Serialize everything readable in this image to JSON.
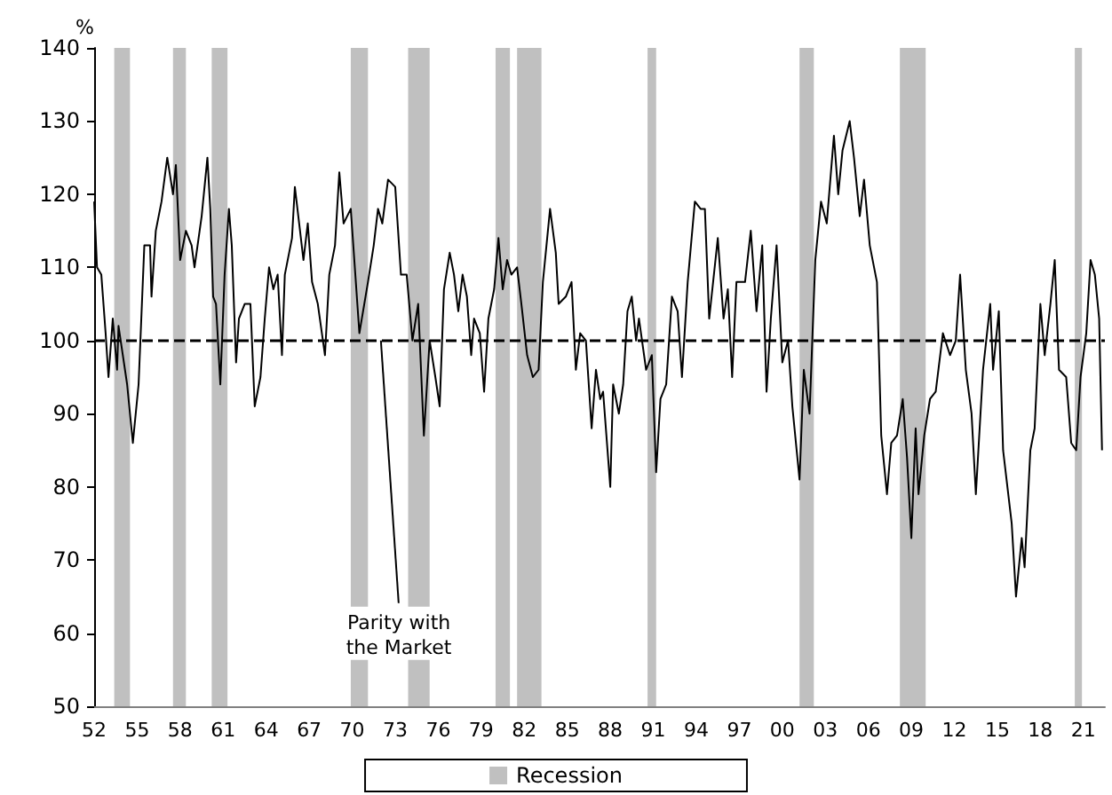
{
  "chart_data": {
    "type": "line",
    "ylabel": "%",
    "x": [
      1952.0,
      1952.2,
      1952.5,
      1952.8,
      1953.0,
      1953.3,
      1953.6,
      1953.7,
      1954.0,
      1954.3,
      1954.7,
      1955.1,
      1955.5,
      1955.9,
      1956.0,
      1956.3,
      1956.7,
      1957.1,
      1957.5,
      1957.7,
      1958.0,
      1958.4,
      1958.8,
      1959.0,
      1959.5,
      1959.9,
      1960.1,
      1960.3,
      1960.5,
      1960.8,
      1961.1,
      1961.4,
      1961.6,
      1961.9,
      1962.1,
      1962.5,
      1962.9,
      1963.2,
      1963.6,
      1963.9,
      1964.2,
      1964.5,
      1964.8,
      1965.1,
      1965.3,
      1965.8,
      1966.0,
      1966.3,
      1966.6,
      1966.9,
      1967.2,
      1967.6,
      1968.1,
      1968.4,
      1968.8,
      1969.1,
      1969.4,
      1969.9,
      1970.5,
      1971.1,
      1971.5,
      1971.8,
      1972.1,
      1972.5,
      1973.0,
      1973.4,
      1973.8,
      1974.2,
      1974.6,
      1975.0,
      1975.4,
      1975.8,
      1976.1,
      1976.4,
      1976.8,
      1977.1,
      1977.4,
      1977.7,
      1978.0,
      1978.3,
      1978.5,
      1978.9,
      1979.2,
      1979.5,
      1979.9,
      1980.2,
      1980.5,
      1980.8,
      1981.1,
      1981.5,
      1981.8,
      1982.2,
      1982.6,
      1983.0,
      1983.3,
      1983.8,
      1984.2,
      1984.4,
      1984.9,
      1985.3,
      1985.6,
      1985.9,
      1986.3,
      1986.7,
      1987.0,
      1987.3,
      1987.5,
      1988.0,
      1988.2,
      1988.6,
      1988.9,
      1989.2,
      1989.5,
      1989.8,
      1990.0,
      1990.5,
      1990.9,
      1991.2,
      1991.5,
      1991.9,
      1992.3,
      1992.7,
      1993.0,
      1993.4,
      1993.9,
      1994.3,
      1994.6,
      1994.9,
      1995.5,
      1995.9,
      1996.2,
      1996.5,
      1996.8,
      1997.4,
      1997.8,
      1998.2,
      1998.6,
      1998.9,
      1999.2,
      1999.6,
      2000.0,
      2000.4,
      2000.7,
      2001.2,
      2001.5,
      2001.9,
      2002.3,
      2002.7,
      2003.1,
      2003.6,
      2003.9,
      2004.2,
      2004.7,
      2005.0,
      2005.4,
      2005.7,
      2006.1,
      2006.6,
      2006.9,
      2007.3,
      2007.6,
      2008.0,
      2008.4,
      2008.7,
      2009.0,
      2009.3,
      2009.5,
      2009.9,
      2010.3,
      2010.7,
      2011.2,
      2011.7,
      2012.1,
      2012.4,
      2012.8,
      2013.2,
      2013.5,
      2014.0,
      2014.5,
      2014.7,
      2015.1,
      2015.4,
      2016.0,
      2016.3,
      2016.7,
      2016.9,
      2017.3,
      2017.6,
      2018.0,
      2018.3,
      2018.7,
      2019.0,
      2019.3,
      2019.8,
      2020.15,
      2020.5,
      2020.8,
      2021.2,
      2021.5,
      2021.8,
      2022.1,
      2022.3
    ],
    "series": [
      {
        "color": "#000000",
        "values": [
          119,
          110,
          109,
          101,
          95,
          103,
          96,
          102,
          98,
          94,
          86,
          94,
          113,
          113,
          106,
          115,
          119,
          125,
          120,
          124,
          111,
          115,
          113,
          110,
          117,
          125,
          118,
          106,
          105,
          94,
          109,
          118,
          113,
          97,
          103,
          105,
          105,
          91,
          95,
          103,
          110,
          107,
          109,
          98,
          109,
          114,
          121,
          116,
          111,
          116,
          108,
          105,
          98,
          109,
          113,
          123,
          116,
          118,
          101,
          108,
          113,
          118,
          116,
          122,
          121,
          109,
          109,
          100,
          105,
          87,
          100,
          95,
          91,
          107,
          112,
          109,
          104,
          109,
          106,
          98,
          103,
          101,
          93,
          103,
          107,
          114,
          107,
          111,
          109,
          110,
          105,
          98,
          95,
          96,
          108,
          118,
          112,
          105,
          106,
          108,
          96,
          101,
          100,
          88,
          96,
          92,
          93,
          80,
          94,
          90,
          94,
          104,
          106,
          100,
          103,
          96,
          98,
          82,
          92,
          94,
          106,
          104,
          95,
          108,
          119,
          118,
          118,
          103,
          114,
          103,
          107,
          95,
          108,
          108,
          115,
          104,
          113,
          93,
          103,
          113,
          97,
          100,
          91,
          81,
          96,
          90,
          111,
          119,
          116,
          128,
          120,
          126,
          130,
          125,
          117,
          122,
          113,
          108,
          87,
          79,
          86,
          87,
          92,
          84,
          73,
          88,
          79,
          87,
          92,
          93,
          101,
          98,
          100,
          109,
          96,
          90,
          79,
          96,
          105,
          96,
          104,
          85,
          75,
          65,
          73,
          69,
          85,
          88,
          105,
          98,
          105,
          111,
          96,
          95,
          86,
          85,
          95,
          101,
          111,
          109,
          103,
          85
        ]
      }
    ],
    "xlim": [
      1952,
      2022.5
    ],
    "xticks": [
      {
        "value": 1952,
        "label": "52"
      },
      {
        "value": 1955,
        "label": "55"
      },
      {
        "value": 1958,
        "label": "58"
      },
      {
        "value": 1961,
        "label": "61"
      },
      {
        "value": 1964,
        "label": "64"
      },
      {
        "value": 1967,
        "label": "67"
      },
      {
        "value": 1970,
        "label": "70"
      },
      {
        "value": 1973,
        "label": "73"
      },
      {
        "value": 1976,
        "label": "76"
      },
      {
        "value": 1979,
        "label": "79"
      },
      {
        "value": 1982,
        "label": "82"
      },
      {
        "value": 1985,
        "label": "85"
      },
      {
        "value": 1988,
        "label": "88"
      },
      {
        "value": 1991,
        "label": "91"
      },
      {
        "value": 1994,
        "label": "94"
      },
      {
        "value": 1997,
        "label": "97"
      },
      {
        "value": 2000,
        "label": "00"
      },
      {
        "value": 2003,
        "label": "03"
      },
      {
        "value": 2006,
        "label": "06"
      },
      {
        "value": 2009,
        "label": "09"
      },
      {
        "value": 2012,
        "label": "12"
      },
      {
        "value": 2015,
        "label": "15"
      },
      {
        "value": 2018,
        "label": "18"
      },
      {
        "value": 2021,
        "label": "21"
      }
    ],
    "ylim": [
      50,
      140
    ],
    "yticks": [
      50,
      60,
      70,
      80,
      90,
      100,
      110,
      120,
      130,
      140
    ],
    "ref_lines": [
      {
        "axis": "y",
        "value": 100,
        "color": "#000000",
        "line_style": "dashed"
      }
    ],
    "bands": [
      {
        "axis": "x",
        "from": 1953.4,
        "to": 1954.5,
        "label": "Recession",
        "color": "#c0c0c0"
      },
      {
        "axis": "x",
        "from": 1957.5,
        "to": 1958.4,
        "color": "#c0c0c0"
      },
      {
        "axis": "x",
        "from": 1960.2,
        "to": 1961.3,
        "color": "#c0c0c0"
      },
      {
        "axis": "x",
        "from": 1969.9,
        "to": 1971.1,
        "color": "#c0c0c0"
      },
      {
        "axis": "x",
        "from": 1973.9,
        "to": 1975.4,
        "color": "#c0c0c0"
      },
      {
        "axis": "x",
        "from": 1980.0,
        "to": 1981.0,
        "color": "#c0c0c0"
      },
      {
        "axis": "x",
        "from": 1981.5,
        "to": 1983.2,
        "color": "#c0c0c0"
      },
      {
        "axis": "x",
        "from": 1990.6,
        "to": 1991.2,
        "color": "#c0c0c0"
      },
      {
        "axis": "x",
        "from": 2001.2,
        "to": 2002.2,
        "color": "#c0c0c0"
      },
      {
        "axis": "x",
        "from": 2008.2,
        "to": 2010.0,
        "color": "#c0c0c0"
      },
      {
        "axis": "x",
        "from": 2020.4,
        "to": 2020.9,
        "color": "#c0c0c0"
      }
    ],
    "annotations": [
      {
        "text": "Parity with\nthe Market",
        "x": 1972,
        "y": 100
      }
    ],
    "grid": false,
    "legend": "bottom",
    "marker": "none",
    "line_style": "solid"
  }
}
